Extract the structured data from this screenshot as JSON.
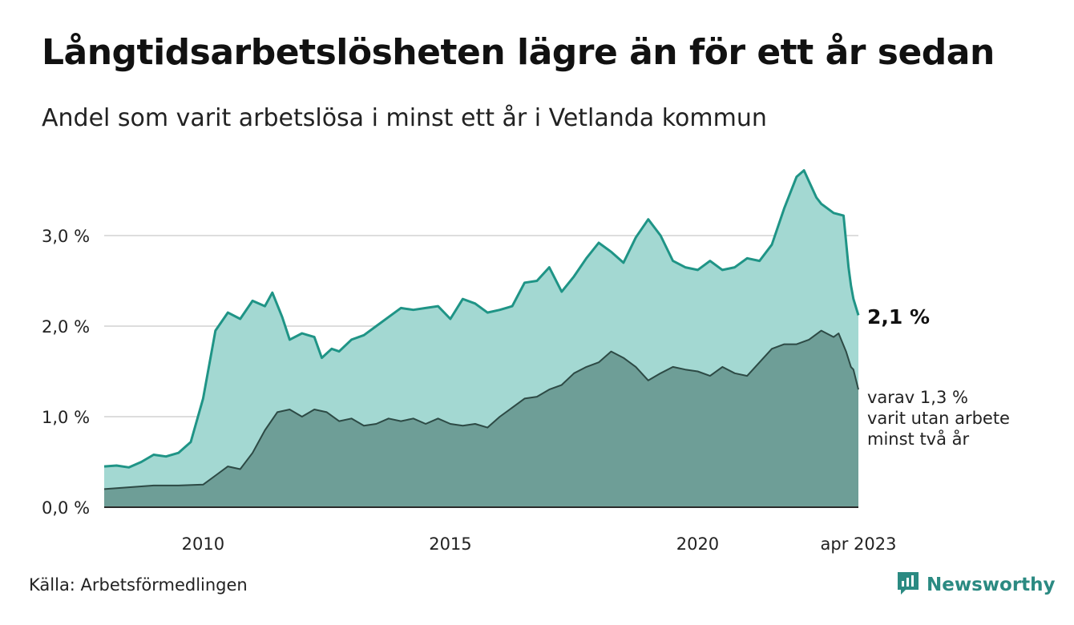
{
  "title": "Långtidsarbetslösheten lägre än för ett år sedan",
  "subtitle": "Andel som varit arbetslösa i minst ett år i Vetlanda kommun",
  "source": "Källa: Arbetsförmedlingen",
  "brand": {
    "name": "Newsworthy",
    "icon": "bar-chart-speech-icon"
  },
  "colors": {
    "outer_fill": "#a3d8d2",
    "outer_line": "#1f9486",
    "inner_fill": "#6e9e97",
    "inner_line": "#2d4a45",
    "grid": "#dddddd",
    "brand": "#2b8a82"
  },
  "chart_data": {
    "type": "area",
    "title": "Långtidsarbetslösheten lägre än för ett år sedan",
    "subtitle": "Andel som varit arbetslösa i minst ett år i Vetlanda kommun",
    "xlabel": "",
    "ylabel": "",
    "xlim": [
      2008.0,
      2023.25
    ],
    "ylim": [
      0,
      3.7
    ],
    "grid": true,
    "y_ticks": [
      {
        "value": 0,
        "label": "0,0 %"
      },
      {
        "value": 1,
        "label": "1,0 %"
      },
      {
        "value": 2,
        "label": "2,0 %"
      },
      {
        "value": 3,
        "label": "3,0 %"
      }
    ],
    "x_ticks": [
      {
        "value": 2010,
        "label": "2010"
      },
      {
        "value": 2015,
        "label": "2015"
      },
      {
        "value": 2020,
        "label": "2020"
      },
      {
        "value": 2023.25,
        "label": "apr 2023"
      }
    ],
    "end_labels": {
      "main": "2,1 %",
      "sub": [
        "varav 1,3 %",
        "varit utan arbete",
        "minst två år"
      ]
    },
    "series": [
      {
        "name": "minst ett år",
        "points": [
          [
            2008.0,
            0.45
          ],
          [
            2008.25,
            0.46
          ],
          [
            2008.5,
            0.44
          ],
          [
            2008.75,
            0.5
          ],
          [
            2009.0,
            0.58
          ],
          [
            2009.25,
            0.56
          ],
          [
            2009.5,
            0.6
          ],
          [
            2009.75,
            0.72
          ],
          [
            2010.0,
            1.2
          ],
          [
            2010.25,
            1.95
          ],
          [
            2010.5,
            2.15
          ],
          [
            2010.75,
            2.08
          ],
          [
            2011.0,
            2.28
          ],
          [
            2011.25,
            2.22
          ],
          [
            2011.4,
            2.37
          ],
          [
            2011.6,
            2.1
          ],
          [
            2011.75,
            1.85
          ],
          [
            2012.0,
            1.92
          ],
          [
            2012.25,
            1.88
          ],
          [
            2012.4,
            1.65
          ],
          [
            2012.6,
            1.75
          ],
          [
            2012.75,
            1.72
          ],
          [
            2013.0,
            1.85
          ],
          [
            2013.25,
            1.9
          ],
          [
            2013.5,
            2.0
          ],
          [
            2013.75,
            2.1
          ],
          [
            2014.0,
            2.2
          ],
          [
            2014.25,
            2.18
          ],
          [
            2014.5,
            2.2
          ],
          [
            2014.75,
            2.22
          ],
          [
            2015.0,
            2.08
          ],
          [
            2015.25,
            2.3
          ],
          [
            2015.5,
            2.25
          ],
          [
            2015.75,
            2.15
          ],
          [
            2016.0,
            2.18
          ],
          [
            2016.25,
            2.22
          ],
          [
            2016.5,
            2.48
          ],
          [
            2016.75,
            2.5
          ],
          [
            2017.0,
            2.65
          ],
          [
            2017.25,
            2.38
          ],
          [
            2017.5,
            2.55
          ],
          [
            2017.75,
            2.75
          ],
          [
            2018.0,
            2.92
          ],
          [
            2018.25,
            2.82
          ],
          [
            2018.5,
            2.7
          ],
          [
            2018.75,
            2.98
          ],
          [
            2019.0,
            3.18
          ],
          [
            2019.25,
            3.0
          ],
          [
            2019.5,
            2.72
          ],
          [
            2019.75,
            2.65
          ],
          [
            2020.0,
            2.62
          ],
          [
            2020.25,
            2.72
          ],
          [
            2020.5,
            2.62
          ],
          [
            2020.75,
            2.65
          ],
          [
            2021.0,
            2.75
          ],
          [
            2021.25,
            2.72
          ],
          [
            2021.5,
            2.9
          ],
          [
            2021.75,
            3.3
          ],
          [
            2022.0,
            3.65
          ],
          [
            2022.15,
            3.72
          ],
          [
            2022.25,
            3.6
          ],
          [
            2022.4,
            3.42
          ],
          [
            2022.5,
            3.35
          ],
          [
            2022.75,
            3.25
          ],
          [
            2022.95,
            3.22
          ],
          [
            2023.05,
            2.65
          ],
          [
            2023.1,
            2.45
          ],
          [
            2023.15,
            2.3
          ],
          [
            2023.25,
            2.12
          ]
        ]
      },
      {
        "name": "minst två år",
        "points": [
          [
            2008.0,
            0.2
          ],
          [
            2008.5,
            0.22
          ],
          [
            2009.0,
            0.24
          ],
          [
            2009.5,
            0.24
          ],
          [
            2010.0,
            0.25
          ],
          [
            2010.25,
            0.35
          ],
          [
            2010.5,
            0.45
          ],
          [
            2010.75,
            0.42
          ],
          [
            2011.0,
            0.6
          ],
          [
            2011.25,
            0.85
          ],
          [
            2011.5,
            1.05
          ],
          [
            2011.75,
            1.08
          ],
          [
            2012.0,
            1.0
          ],
          [
            2012.25,
            1.08
          ],
          [
            2012.5,
            1.05
          ],
          [
            2012.75,
            0.95
          ],
          [
            2013.0,
            0.98
          ],
          [
            2013.25,
            0.9
          ],
          [
            2013.5,
            0.92
          ],
          [
            2013.75,
            0.98
          ],
          [
            2014.0,
            0.95
          ],
          [
            2014.25,
            0.98
          ],
          [
            2014.5,
            0.92
          ],
          [
            2014.75,
            0.98
          ],
          [
            2015.0,
            0.92
          ],
          [
            2015.25,
            0.9
          ],
          [
            2015.5,
            0.92
          ],
          [
            2015.75,
            0.88
          ],
          [
            2016.0,
            1.0
          ],
          [
            2016.25,
            1.1
          ],
          [
            2016.5,
            1.2
          ],
          [
            2016.75,
            1.22
          ],
          [
            2017.0,
            1.3
          ],
          [
            2017.25,
            1.35
          ],
          [
            2017.5,
            1.48
          ],
          [
            2017.75,
            1.55
          ],
          [
            2018.0,
            1.6
          ],
          [
            2018.25,
            1.72
          ],
          [
            2018.5,
            1.65
          ],
          [
            2018.75,
            1.55
          ],
          [
            2019.0,
            1.4
          ],
          [
            2019.25,
            1.48
          ],
          [
            2019.5,
            1.55
          ],
          [
            2019.75,
            1.52
          ],
          [
            2020.0,
            1.5
          ],
          [
            2020.25,
            1.45
          ],
          [
            2020.5,
            1.55
          ],
          [
            2020.75,
            1.48
          ],
          [
            2021.0,
            1.45
          ],
          [
            2021.25,
            1.6
          ],
          [
            2021.5,
            1.75
          ],
          [
            2021.75,
            1.8
          ],
          [
            2022.0,
            1.8
          ],
          [
            2022.25,
            1.85
          ],
          [
            2022.5,
            1.95
          ],
          [
            2022.75,
            1.88
          ],
          [
            2022.85,
            1.92
          ],
          [
            2023.0,
            1.72
          ],
          [
            2023.1,
            1.55
          ],
          [
            2023.15,
            1.52
          ],
          [
            2023.25,
            1.3
          ]
        ]
      }
    ]
  }
}
